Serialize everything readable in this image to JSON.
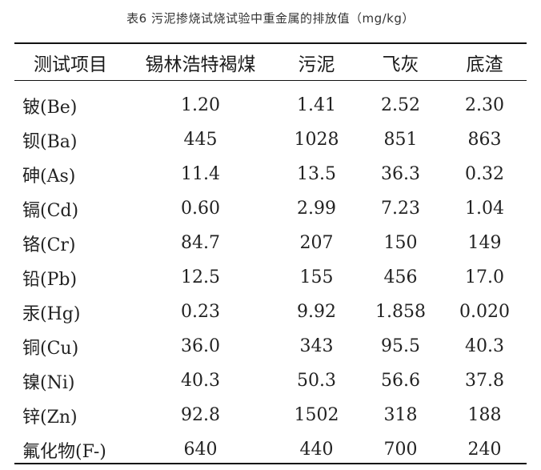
{
  "caption": "表6 污泥掺烧试烧试验中重金属的排放值（mg/kg）",
  "table": {
    "headers": [
      "测试项目",
      "锡林浩特褐煤",
      "污泥",
      "飞灰",
      "底渣"
    ],
    "rows": [
      [
        "铍(Be)",
        "1.20",
        "1.41",
        "2.52",
        "2.30"
      ],
      [
        "钡(Ba)",
        "445",
        "1028",
        "851",
        "863"
      ],
      [
        "砷(As)",
        "11.4",
        "13.5",
        "36.3",
        "0.32"
      ],
      [
        "镉(Cd)",
        "0.60",
        "2.99",
        "7.23",
        "1.04"
      ],
      [
        "铬(Cr)",
        "84.7",
        "207",
        "150",
        "149"
      ],
      [
        "铅(Pb)",
        "12.5",
        "155",
        "456",
        "17.0"
      ],
      [
        "汞(Hg)",
        "0.23",
        "9.92",
        "1.858",
        "0.020"
      ],
      [
        "铜(Cu)",
        "36.0",
        "343",
        "95.5",
        "40.3"
      ],
      [
        "镍(Ni)",
        "40.3",
        "50.3",
        "56.6",
        "37.8"
      ],
      [
        "锌(Zn)",
        "92.8",
        "1502",
        "318",
        "188"
      ],
      [
        "氟化物(F-)",
        "640",
        "440",
        "700",
        "240"
      ]
    ]
  }
}
